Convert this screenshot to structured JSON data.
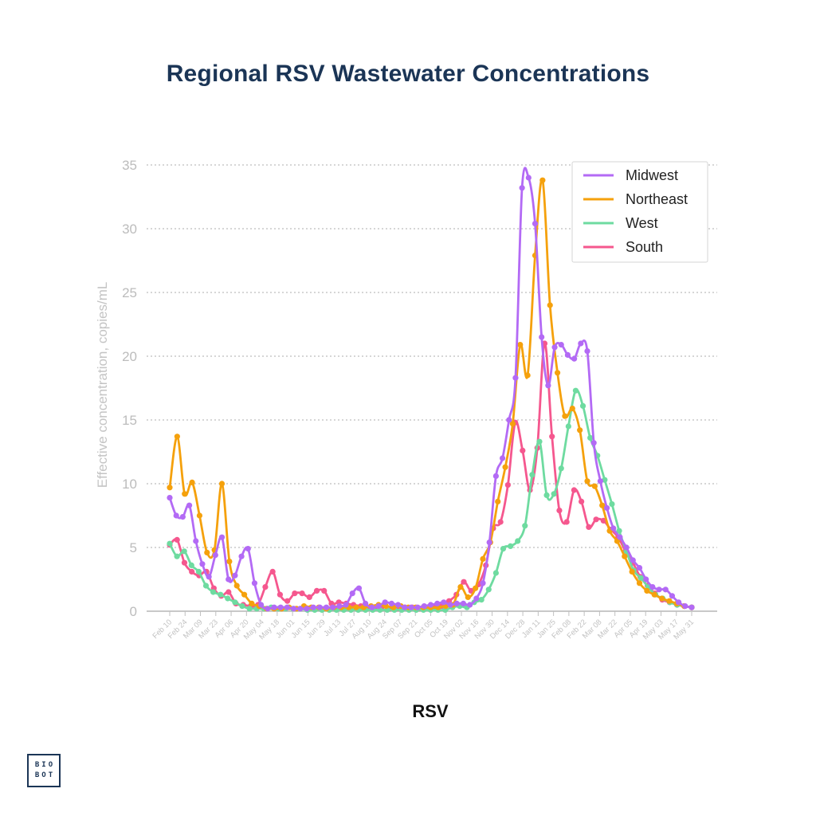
{
  "title": "Regional RSV Wastewater Concentrations",
  "xaxis_title": "RSV",
  "logo": {
    "line1": "BIO",
    "line2": "BOT"
  },
  "chart_data": {
    "type": "line",
    "title": "Regional RSV Wastewater Concentrations",
    "xlabel": "RSV",
    "ylabel": "Effective concentration, copies/mL",
    "ylim": [
      0,
      35
    ],
    "yticks": [
      0,
      5,
      10,
      15,
      20,
      25,
      30,
      35
    ],
    "grid": "horizontal dotted",
    "legend_position": "top-right",
    "x_tick_labels": [
      "Feb 10",
      "Feb 24",
      "Mar 09",
      "Mar 23",
      "Apr 06",
      "Apr 20",
      "May 04",
      "May 18",
      "Jun 01",
      "Jun 15",
      "Jun 29",
      "Jul 13",
      "Jul 27",
      "Aug 10",
      "Aug 24",
      "Sep 07",
      "Sep 21",
      "Oct 05",
      "Oct 19",
      "Nov 02",
      "Nov 16",
      "Nov 30",
      "Dec 14",
      "Dec 28",
      "Jan 11",
      "Jan 25",
      "Feb 08",
      "Feb 22",
      "Mar 08",
      "Mar 22",
      "Apr 05",
      "Apr 19",
      "May 03",
      "May 17",
      "May 31"
    ],
    "weeks_per_tick": 2,
    "series": [
      {
        "name": "Midwest",
        "color": "#b36af5",
        "values": [
          8.9,
          7.5,
          7.4,
          8.3,
          5.5,
          3.7,
          2.7,
          4.4,
          5.8,
          2.5,
          2.8,
          4.3,
          4.9,
          2.2,
          0.5,
          0.2,
          0.3,
          0.3,
          0.3,
          0.2,
          0.2,
          0.2,
          0.3,
          0.3,
          0.3,
          0.3,
          0.4,
          0.5,
          1.4,
          1.8,
          0.6,
          0.3,
          0.4,
          0.7,
          0.6,
          0.5,
          0.3,
          0.3,
          0.3,
          0.4,
          0.5,
          0.6,
          0.7,
          0.5,
          0.6,
          0.6,
          0.5,
          1.0,
          2.2,
          5.4,
          10.6,
          12.0,
          15.0,
          18.3,
          33.2,
          34.0,
          30.4,
          21.5,
          17.7,
          20.7,
          20.9,
          20.1,
          19.8,
          21.0,
          20.4,
          13.2,
          10.2,
          8.1,
          6.5,
          5.8,
          5.0,
          4.0,
          3.4,
          2.5,
          1.9,
          1.7,
          1.7,
          1.2,
          0.7,
          0.4,
          0.3
        ]
      },
      {
        "name": "Northeast",
        "color": "#f5a10c",
        "values": [
          9.7,
          13.7,
          9.2,
          10.1,
          7.5,
          4.6,
          4.8,
          10.0,
          3.9,
          2.0,
          1.3,
          0.6,
          0.4,
          0.2,
          0.2,
          0.2,
          0.3,
          0.2,
          0.4,
          0.3,
          0.3,
          0.2,
          0.3,
          0.3,
          0.3,
          0.3,
          0.3,
          0.4,
          0.5,
          0.4,
          0.3,
          0.4,
          0.3,
          0.3,
          0.3,
          0.3,
          0.3,
          0.4,
          0.5,
          1.9,
          1.1,
          1.8,
          4.1,
          5.4,
          8.6,
          11.3,
          14.7,
          20.9,
          18.5,
          27.9,
          33.8,
          24.0,
          18.7,
          15.3,
          15.9,
          14.2,
          10.2,
          9.8,
          8.3,
          6.3,
          5.5,
          4.3,
          3.1,
          2.2,
          1.6,
          1.3,
          1.0,
          0.8,
          0.6,
          0.4,
          0.3
        ]
      },
      {
        "name": "West",
        "color": "#6edba0",
        "values": [
          5.3,
          4.3,
          4.7,
          3.6,
          3.1,
          2.0,
          1.5,
          1.3,
          1.0,
          0.7,
          0.4,
          0.2,
          0.2,
          0.2,
          0.3,
          0.2,
          0.2,
          0.2,
          0.2,
          0.1,
          0.1,
          0.1,
          0.1,
          0.1,
          0.1,
          0.1,
          0.1,
          0.1,
          0.1,
          0.1,
          0.1,
          0.1,
          0.1,
          0.1,
          0.1,
          0.1,
          0.1,
          0.1,
          0.1,
          0.3,
          0.4,
          0.3,
          0.7,
          0.9,
          1.7,
          3.0,
          4.9,
          5.1,
          5.5,
          6.7,
          10.7,
          13.3,
          9.1,
          9.2,
          11.2,
          14.5,
          17.3,
          16.1,
          13.6,
          12.2,
          10.3,
          8.4,
          6.3,
          4.7,
          3.2,
          2.6,
          1.9,
          1.3,
          1.0,
          0.7,
          0.5,
          0.4,
          0.3
        ]
      },
      {
        "name": "South",
        "color": "#f5578e",
        "values": [
          5.2,
          5.6,
          3.8,
          3.1,
          2.8,
          3.1,
          1.8,
          1.2,
          1.5,
          0.6,
          0.5,
          0.4,
          0.5,
          1.9,
          3.1,
          1.3,
          0.8,
          1.4,
          1.4,
          1.1,
          1.6,
          1.6,
          0.6,
          0.7,
          0.6,
          0.5,
          0.4,
          0.3,
          0.3,
          0.4,
          0.2,
          0.2,
          0.3,
          0.3,
          0.2,
          0.3,
          0.3,
          0.4,
          0.8,
          1.3,
          2.3,
          1.6,
          2.1,
          3.6,
          6.5,
          7.0,
          9.9,
          14.8,
          12.6,
          9.5,
          12.8,
          21.0,
          13.7,
          7.9,
          7.0,
          9.5,
          8.6,
          6.6,
          7.2,
          7.1,
          6.4,
          5.8,
          4.7,
          3.8,
          2.7,
          2.0,
          1.4,
          0.9,
          0.7,
          0.5,
          0.4,
          0.3
        ]
      }
    ]
  }
}
